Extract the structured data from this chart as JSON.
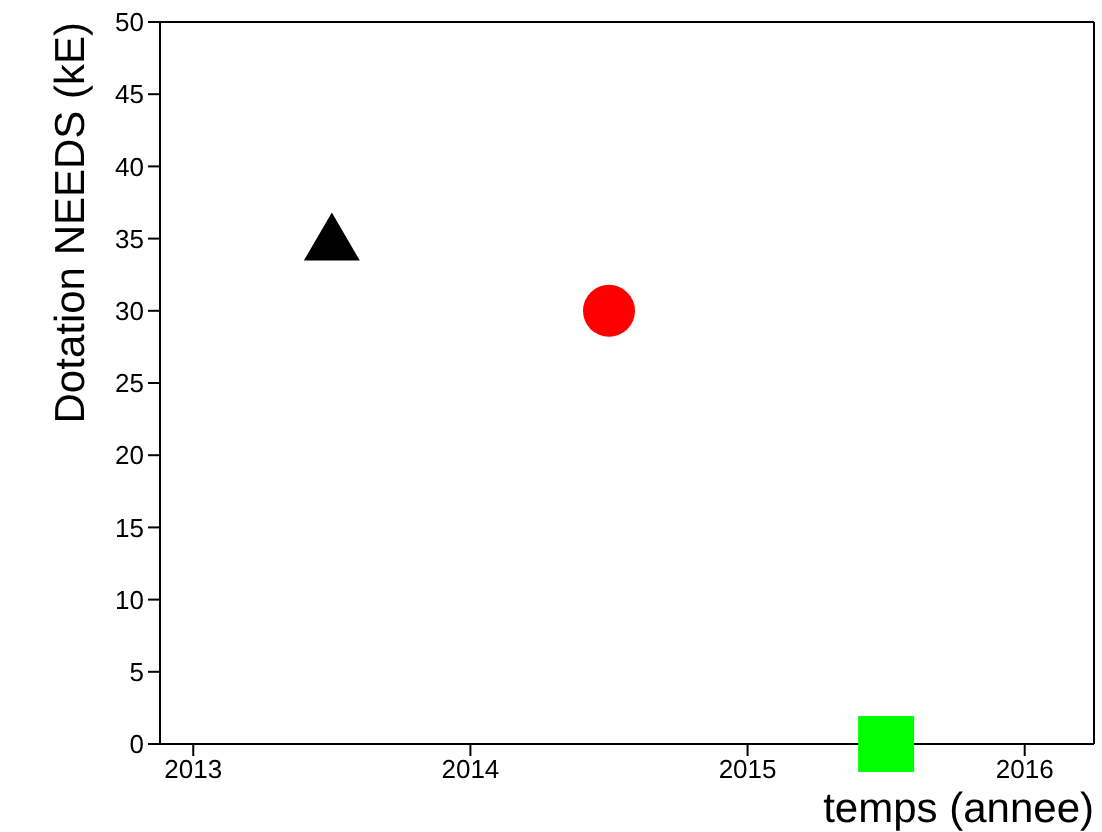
{
  "chart_data": {
    "type": "scatter",
    "xlabel": "temps (annee)",
    "ylabel": "Dotation NEEDS (kE)",
    "xlim": [
      2012.88,
      2016.25
    ],
    "xticks": [
      2013,
      2014,
      2015,
      2016
    ],
    "ylim": [
      0,
      50
    ],
    "yticks": [
      0,
      5,
      10,
      15,
      20,
      25,
      30,
      35,
      40,
      45,
      50
    ],
    "series": [
      {
        "color": "#000000",
        "marker": "triangle",
        "x": [
          2013.5
        ],
        "values": [
          35
        ]
      },
      {
        "color": "#ff0000",
        "marker": "circle",
        "x": [
          2014.5
        ],
        "values": [
          30
        ]
      },
      {
        "color": "#00ff00",
        "marker": "square",
        "x": [
          2015.5
        ],
        "values": [
          0
        ]
      }
    ]
  }
}
